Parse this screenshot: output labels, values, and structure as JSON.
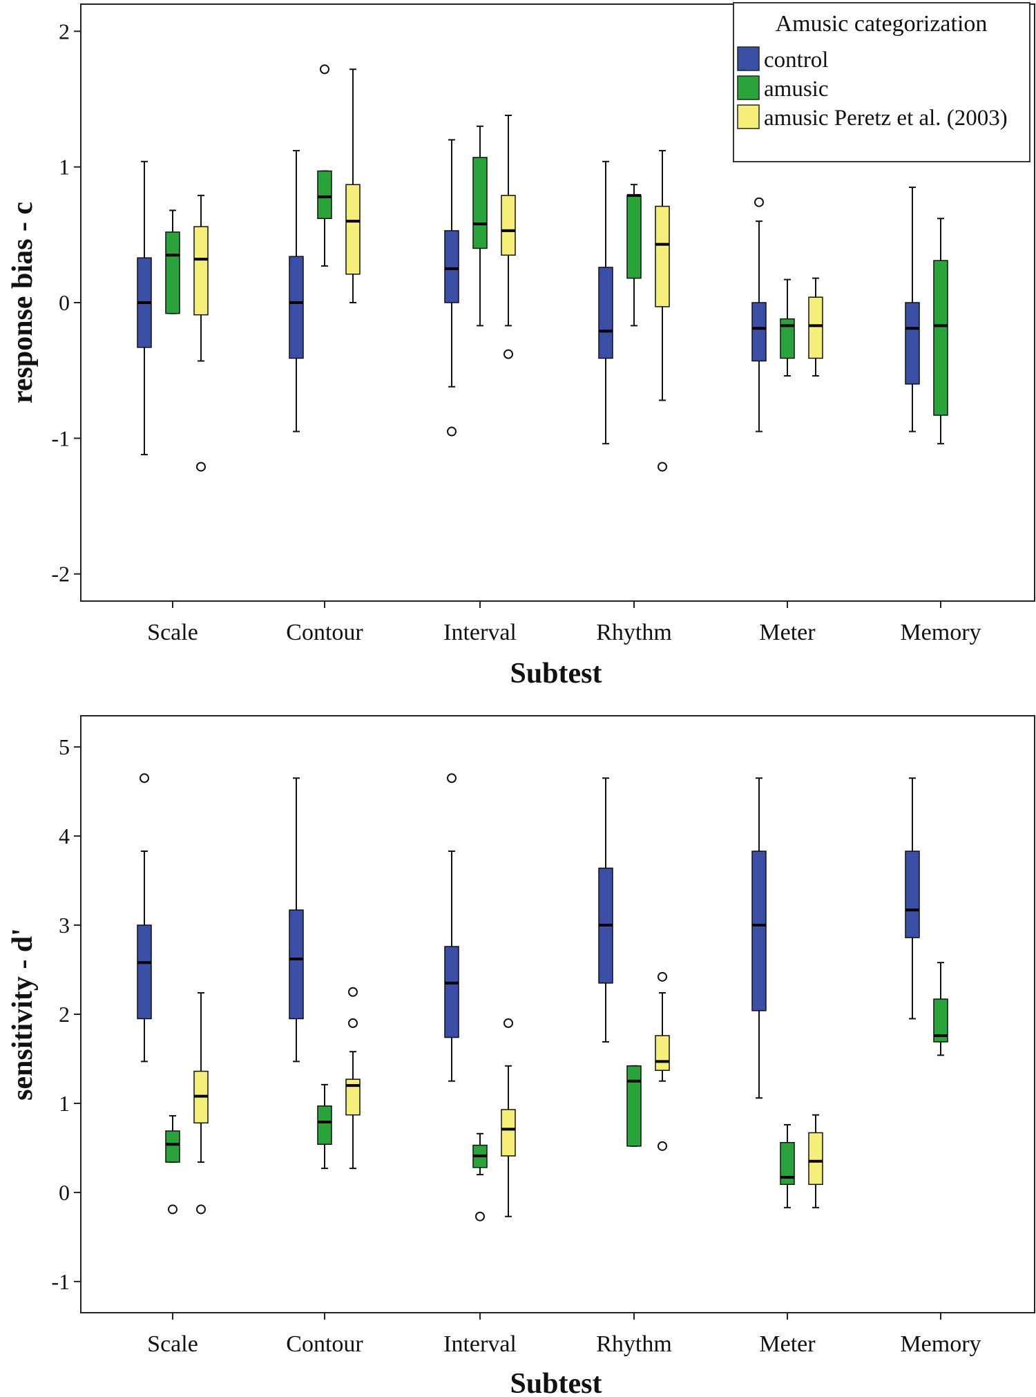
{
  "chart_data": [
    {
      "type": "boxplot",
      "id": "top",
      "ylabel": "response bias - c",
      "xlabel": "Subtest",
      "ylim": [
        -2.2,
        2.2
      ],
      "yticks": [
        -2,
        -1,
        0,
        1,
        2
      ],
      "categories": [
        "Scale",
        "Contour",
        "Interval",
        "Rhythm",
        "Meter",
        "Memory"
      ],
      "legend": {
        "title": "Amusic categorization",
        "entries": [
          "control",
          "amusic",
          "amusic Peretz et al. (2003)"
        ],
        "position": "top-right"
      },
      "series": [
        {
          "name": "control",
          "color": "#3b4fa6",
          "boxes": [
            {
              "min": -1.12,
              "q1": -0.33,
              "median": 0.0,
              "q3": 0.33,
              "max": 1.04,
              "outliers": []
            },
            {
              "min": -0.95,
              "q1": -0.41,
              "median": 0.0,
              "q3": 0.34,
              "max": 1.12,
              "outliers": []
            },
            {
              "min": -0.62,
              "q1": 0.0,
              "median": 0.25,
              "q3": 0.53,
              "max": 1.2,
              "outliers": [
                -0.95
              ]
            },
            {
              "min": -1.04,
              "q1": -0.41,
              "median": -0.21,
              "q3": 0.26,
              "max": 1.04,
              "outliers": []
            },
            {
              "min": -0.95,
              "q1": -0.43,
              "median": -0.19,
              "q3": 0.0,
              "max": 0.6,
              "outliers": [
                0.74
              ]
            },
            {
              "min": -0.95,
              "q1": -0.6,
              "median": -0.19,
              "q3": 0.0,
              "max": 0.85,
              "outliers": []
            }
          ]
        },
        {
          "name": "amusic",
          "color": "#2aa43a",
          "boxes": [
            {
              "min": -0.08,
              "q1": -0.08,
              "median": 0.35,
              "q3": 0.52,
              "max": 0.68,
              "outliers": []
            },
            {
              "min": 0.27,
              "q1": 0.62,
              "median": 0.78,
              "q3": 0.97,
              "max": 0.97,
              "outliers": [
                1.72
              ]
            },
            {
              "min": -0.17,
              "q1": 0.4,
              "median": 0.58,
              "q3": 1.07,
              "max": 1.3,
              "outliers": []
            },
            {
              "min": -0.17,
              "q1": 0.18,
              "median": 0.79,
              "q3": 0.79,
              "max": 0.87,
              "outliers": []
            },
            {
              "min": -0.54,
              "q1": -0.41,
              "median": -0.17,
              "q3": -0.12,
              "max": 0.17,
              "outliers": []
            },
            {
              "min": -1.04,
              "q1": -0.83,
              "median": -0.17,
              "q3": 0.31,
              "max": 0.62,
              "outliers": []
            }
          ]
        },
        {
          "name": "amusic Peretz et al. (2003)",
          "color": "#f5ef7a",
          "boxes": [
            {
              "min": -0.43,
              "q1": -0.09,
              "median": 0.32,
              "q3": 0.56,
              "max": 0.79,
              "outliers": [
                -1.21
              ]
            },
            {
              "min": 0.0,
              "q1": 0.21,
              "median": 0.6,
              "q3": 0.87,
              "max": 1.72,
              "outliers": []
            },
            {
              "min": -0.17,
              "q1": 0.35,
              "median": 0.53,
              "q3": 0.79,
              "max": 1.38,
              "outliers": [
                -0.38
              ]
            },
            {
              "min": -0.72,
              "q1": -0.03,
              "median": 0.43,
              "q3": 0.71,
              "max": 1.12,
              "outliers": [
                -1.21
              ]
            },
            {
              "min": -0.54,
              "q1": -0.41,
              "median": -0.17,
              "q3": 0.04,
              "max": 0.18,
              "outliers": []
            },
            null
          ]
        }
      ]
    },
    {
      "type": "boxplot",
      "id": "bottom",
      "ylabel": "sensitivity - d'",
      "xlabel": "Subtest",
      "ylim": [
        -1.35,
        5.35
      ],
      "yticks": [
        -1,
        0,
        1,
        2,
        3,
        4,
        5
      ],
      "categories": [
        "Scale",
        "Contour",
        "Interval",
        "Rhythm",
        "Meter",
        "Memory"
      ],
      "series": [
        {
          "name": "control",
          "color": "#3b4fa6",
          "boxes": [
            {
              "min": 1.47,
              "q1": 1.95,
              "median": 2.58,
              "q3": 3.0,
              "max": 3.83,
              "outliers": [
                4.65
              ]
            },
            {
              "min": 1.47,
              "q1": 1.95,
              "median": 2.62,
              "q3": 3.17,
              "max": 4.65,
              "outliers": []
            },
            {
              "min": 1.25,
              "q1": 1.74,
              "median": 2.35,
              "q3": 2.76,
              "max": 3.83,
              "outliers": [
                4.65
              ]
            },
            {
              "min": 1.69,
              "q1": 2.35,
              "median": 3.0,
              "q3": 3.64,
              "max": 4.65,
              "outliers": []
            },
            {
              "min": 1.06,
              "q1": 2.04,
              "median": 3.0,
              "q3": 3.83,
              "max": 4.65,
              "outliers": []
            },
            {
              "min": 1.95,
              "q1": 2.86,
              "median": 3.17,
              "q3": 3.83,
              "max": 4.65,
              "outliers": []
            }
          ]
        },
        {
          "name": "amusic",
          "color": "#2aa43a",
          "boxes": [
            {
              "min": 0.34,
              "q1": 0.34,
              "median": 0.54,
              "q3": 0.69,
              "max": 0.86,
              "outliers": [
                -0.19
              ]
            },
            {
              "min": 0.27,
              "q1": 0.54,
              "median": 0.79,
              "q3": 0.97,
              "max": 1.21,
              "outliers": []
            },
            {
              "min": 0.2,
              "q1": 0.28,
              "median": 0.41,
              "q3": 0.53,
              "max": 0.66,
              "outliers": [
                -0.27
              ]
            },
            {
              "min": 0.52,
              "q1": 0.52,
              "median": 1.25,
              "q3": 1.42,
              "max": 1.42,
              "outliers": []
            },
            {
              "min": -0.17,
              "q1": 0.09,
              "median": 0.17,
              "q3": 0.56,
              "max": 0.76,
              "outliers": []
            },
            {
              "min": 1.54,
              "q1": 1.69,
              "median": 1.76,
              "q3": 2.17,
              "max": 2.58,
              "outliers": []
            }
          ]
        },
        {
          "name": "amusic Peretz et al. (2003)",
          "color": "#f5ef7a",
          "boxes": [
            {
              "min": 0.34,
              "q1": 0.78,
              "median": 1.08,
              "q3": 1.36,
              "max": 2.24,
              "outliers": [
                -0.19
              ]
            },
            {
              "min": 0.27,
              "q1": 0.87,
              "median": 1.2,
              "q3": 1.27,
              "max": 1.58,
              "outliers": [
                1.9,
                2.25
              ]
            },
            {
              "min": -0.27,
              "q1": 0.41,
              "median": 0.71,
              "q3": 0.93,
              "max": 1.42,
              "outliers": [
                1.9
              ]
            },
            {
              "min": 1.25,
              "q1": 1.37,
              "median": 1.47,
              "q3": 1.76,
              "max": 2.24,
              "outliers": [
                0.52,
                2.42
              ]
            },
            {
              "min": -0.17,
              "q1": 0.09,
              "median": 0.35,
              "q3": 0.67,
              "max": 0.87,
              "outliers": []
            },
            null
          ]
        }
      ]
    }
  ]
}
